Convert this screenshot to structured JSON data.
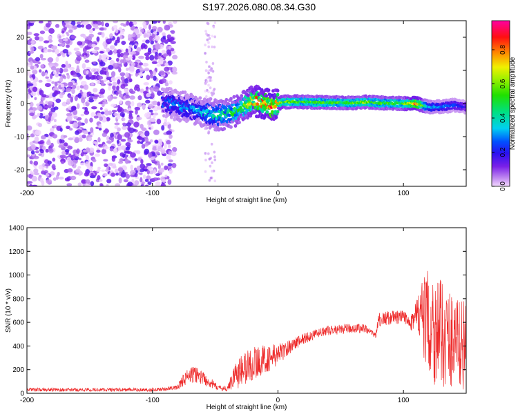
{
  "title": "S197.2026.080.08.34.G30",
  "chart_data": [
    {
      "type": "heatmap",
      "xlabel": "Height of straight line (km)",
      "ylabel": "Frequency (Hz)",
      "xlim": [
        -200,
        150
      ],
      "ylim": [
        -25,
        25
      ],
      "x_ticks": [
        "-200",
        "-100",
        "0",
        "100"
      ],
      "x_tick_values": [
        -200,
        -100,
        0,
        100
      ],
      "y_ticks": [
        "20",
        "10",
        "0",
        "-10",
        "-20"
      ],
      "y_tick_values": [
        20,
        10,
        0,
        -10,
        -20
      ],
      "colorbar": {
        "label": "Normalized spectral amplitude",
        "ticks": [
          "0.0",
          "0.2",
          "0.4",
          "0.6",
          "0.8"
        ],
        "tick_values": [
          0.0,
          0.2,
          0.4,
          0.6,
          0.8
        ],
        "range": [
          0,
          0.97
        ]
      },
      "noise_region_x": [
        -200,
        -90
      ],
      "signal_trace": {
        "x": [
          -90,
          -80,
          -70,
          -60,
          -50,
          -45,
          -40,
          -35,
          -30,
          -25,
          -20,
          -15,
          -10,
          -5,
          0,
          5,
          20,
          40,
          60,
          70,
          80,
          100,
          110,
          115,
          120,
          130,
          140,
          150
        ],
        "freq": [
          0.5,
          -0.5,
          -1.5,
          -2.5,
          -3.5,
          -3.5,
          -3,
          -2.5,
          -1.5,
          -0.5,
          1,
          0.5,
          0,
          -1,
          0,
          0.5,
          0.5,
          0.3,
          0.2,
          0.5,
          0.2,
          0,
          0,
          -0.5,
          -1,
          -1,
          -0.5,
          -1
        ],
        "amplitude": [
          0.25,
          0.3,
          0.3,
          0.35,
          0.4,
          0.45,
          0.45,
          0.5,
          0.55,
          0.6,
          0.75,
          0.8,
          0.8,
          0.85,
          0.7,
          0.6,
          0.55,
          0.55,
          0.55,
          0.6,
          0.55,
          0.55,
          0.85,
          0.6,
          0.35,
          0.3,
          0.25,
          0.2
        ]
      }
    },
    {
      "type": "line",
      "xlabel": "Height of straight line (km)",
      "ylabel": "SNR (10 * v/v)",
      "xlim": [
        -200,
        150
      ],
      "ylim": [
        0,
        1400
      ],
      "x_ticks": [
        "-200",
        "-100",
        "0",
        "100"
      ],
      "x_tick_values": [
        -200,
        -100,
        0,
        100
      ],
      "y_ticks": [
        "0",
        "200",
        "400",
        "600",
        "800",
        "1000",
        "1200",
        "1400"
      ],
      "y_tick_values": [
        0,
        200,
        400,
        600,
        800,
        1000,
        1200,
        1400
      ],
      "color": "#ee2b2b",
      "envelope": {
        "x": [
          -200,
          -150,
          -100,
          -90,
          -80,
          -75,
          -70,
          -65,
          -60,
          -55,
          -50,
          -45,
          -40,
          -35,
          -30,
          -25,
          -20,
          -15,
          -10,
          -5,
          0,
          5,
          10,
          20,
          30,
          40,
          50,
          60,
          70,
          75,
          78,
          80,
          90,
          100,
          105,
          110,
          115,
          120,
          125,
          130,
          140,
          150
        ],
        "mean": [
          30,
          30,
          30,
          35,
          50,
          120,
          150,
          160,
          130,
          100,
          60,
          40,
          40,
          150,
          180,
          220,
          250,
          270,
          290,
          300,
          330,
          360,
          400,
          460,
          500,
          530,
          540,
          550,
          550,
          500,
          500,
          620,
          640,
          640,
          620,
          640,
          650,
          600,
          550,
          500,
          450,
          400
        ],
        "spread": [
          15,
          15,
          15,
          15,
          20,
          60,
          70,
          70,
          60,
          50,
          30,
          20,
          20,
          110,
          140,
          150,
          150,
          130,
          120,
          110,
          100,
          70,
          60,
          50,
          40,
          40,
          40,
          40,
          40,
          30,
          30,
          60,
          60,
          60,
          60,
          200,
          300,
          450,
          500,
          450,
          400,
          380
        ]
      }
    }
  ]
}
